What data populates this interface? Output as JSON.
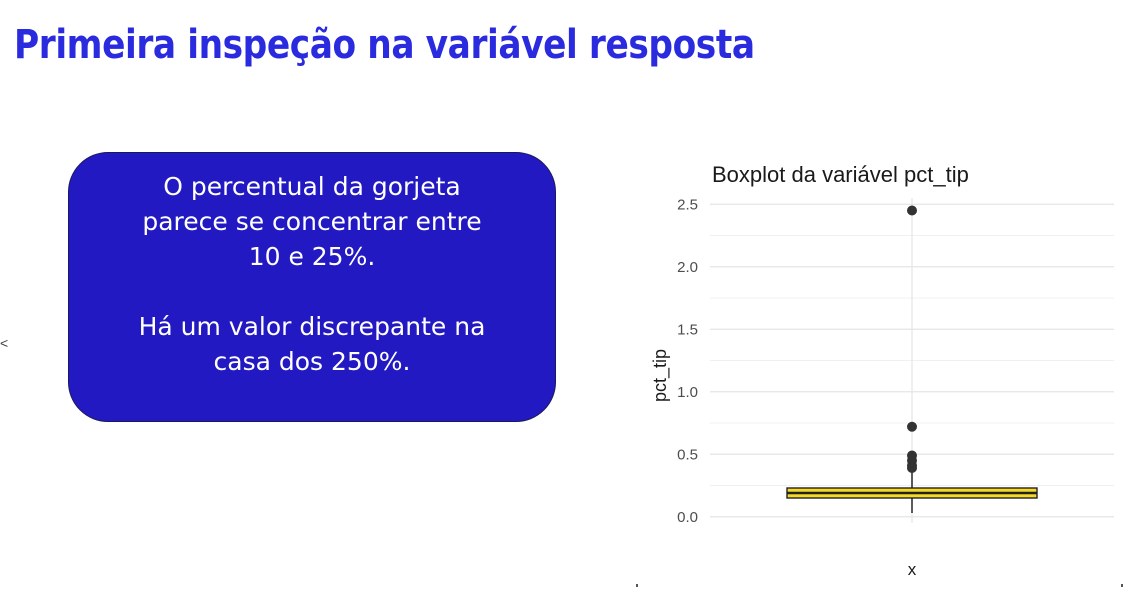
{
  "slide": {
    "title": "Primeira inspeção na variável resposta",
    "title_color": "#2a2adf"
  },
  "callout": {
    "line1": "O percentual da gorjeta",
    "line2": "parece se concentrar entre",
    "line3": "10 e 25%.",
    "line4": "Há um valor discrepante na",
    "line5": "casa dos 250%.",
    "background": "#2219c2"
  },
  "chart_data": {
    "type": "boxplot",
    "title": "Boxplot da variável pct_tip",
    "xlabel": "",
    "ylabel": "pct_tip",
    "categories": [
      "x"
    ],
    "ylim": [
      -0.05,
      2.55
    ],
    "yticks": [
      0.0,
      0.5,
      1.0,
      1.5,
      2.0,
      2.5
    ],
    "ytick_labels": [
      "0.0",
      "0.5",
      "1.0",
      "1.5",
      "2.0",
      "2.5"
    ],
    "grid": true,
    "box": {
      "category": "x",
      "whisker_low": 0.03,
      "q1": 0.15,
      "median": 0.19,
      "q3": 0.23,
      "whisker_high": 0.36
    },
    "outliers": [
      2.45,
      0.72,
      0.49,
      0.45,
      0.41,
      0.39
    ],
    "box_fill": "#f5d927",
    "box_border": "#222222",
    "outlier_color": "#333333"
  }
}
